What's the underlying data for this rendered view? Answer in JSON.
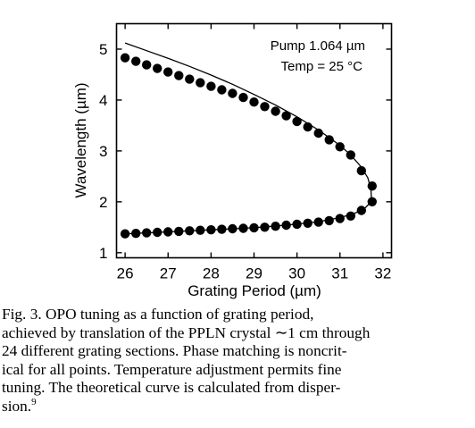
{
  "chart_data": {
    "type": "scatter",
    "xlabel": "Grating Period (µm)",
    "ylabel": "Wavelength (µm)",
    "xlim": [
      25.8,
      32.2
    ],
    "ylim": [
      0.9,
      5.5
    ],
    "xticks": [
      "26",
      "27",
      "28",
      "29",
      "30",
      "31",
      "32"
    ],
    "yticks": [
      "1",
      "2",
      "3",
      "4",
      "5"
    ],
    "grid": false,
    "annotations": [
      "Pump 1.064 µm",
      "Temp = 25 °C"
    ],
    "series": [
      {
        "points": [
          [
            26.0,
            4.83
          ],
          [
            26.25,
            4.76
          ],
          [
            26.5,
            4.69
          ],
          [
            26.75,
            4.62
          ],
          [
            27.0,
            4.55
          ],
          [
            27.25,
            4.48
          ],
          [
            27.5,
            4.41
          ],
          [
            27.75,
            4.34
          ],
          [
            28.0,
            4.27
          ],
          [
            28.25,
            4.2
          ],
          [
            28.5,
            4.13
          ],
          [
            28.75,
            4.05
          ],
          [
            29.0,
            3.96
          ],
          [
            29.25,
            3.87
          ],
          [
            29.5,
            3.78
          ],
          [
            29.75,
            3.69
          ],
          [
            30.0,
            3.58
          ],
          [
            30.25,
            3.47
          ],
          [
            30.5,
            3.35
          ],
          [
            30.75,
            3.22
          ],
          [
            31.0,
            3.08
          ],
          [
            31.25,
            2.92
          ],
          [
            31.5,
            2.61
          ],
          [
            31.75,
            2.31
          ],
          [
            26.0,
            1.37
          ],
          [
            26.25,
            1.38
          ],
          [
            26.5,
            1.39
          ],
          [
            26.75,
            1.4
          ],
          [
            27.0,
            1.41
          ],
          [
            27.25,
            1.42
          ],
          [
            27.5,
            1.43
          ],
          [
            27.75,
            1.44
          ],
          [
            28.0,
            1.45
          ],
          [
            28.25,
            1.46
          ],
          [
            28.5,
            1.47
          ],
          [
            28.75,
            1.48
          ],
          [
            29.0,
            1.49
          ],
          [
            29.25,
            1.5
          ],
          [
            29.5,
            1.52
          ],
          [
            29.75,
            1.54
          ],
          [
            30.0,
            1.56
          ],
          [
            30.25,
            1.58
          ],
          [
            30.5,
            1.6
          ],
          [
            30.75,
            1.63
          ],
          [
            31.0,
            1.67
          ],
          [
            31.25,
            1.72
          ],
          [
            31.5,
            1.83
          ],
          [
            31.75,
            2.0
          ]
        ]
      },
      {
        "style": "line",
        "points": [
          [
            26.0,
            5.12
          ],
          [
            26.5,
            4.97
          ],
          [
            27.0,
            4.82
          ],
          [
            27.5,
            4.66
          ],
          [
            28.0,
            4.49
          ],
          [
            28.5,
            4.31
          ],
          [
            29.0,
            4.11
          ],
          [
            29.5,
            3.9
          ],
          [
            30.0,
            3.67
          ],
          [
            30.5,
            3.41
          ],
          [
            31.0,
            3.11
          ],
          [
            31.25,
            2.92
          ],
          [
            31.5,
            2.68
          ],
          [
            31.65,
            2.47
          ],
          [
            31.72,
            2.25
          ],
          [
            31.73,
            2.1
          ],
          [
            31.68,
            1.96
          ],
          [
            31.55,
            1.85
          ],
          [
            31.3,
            1.76
          ],
          [
            31.0,
            1.69
          ],
          [
            30.5,
            1.61
          ],
          [
            30.0,
            1.56
          ],
          [
            29.0,
            1.49
          ],
          [
            28.0,
            1.45
          ],
          [
            27.0,
            1.41
          ],
          [
            26.0,
            1.37
          ]
        ]
      }
    ]
  },
  "caption": {
    "lines": [
      "Fig. 3.  OPO tuning as a function of grating period,",
      "achieved by translation of the PPLN crystal ∼1 cm through",
      "24 different grating sections.  Phase matching is noncrit-",
      "ical for all points.  Temperature adjustment permits fine",
      "tuning.  The theoretical curve is calculated from disper-",
      "sion."
    ],
    "ref": "9"
  }
}
